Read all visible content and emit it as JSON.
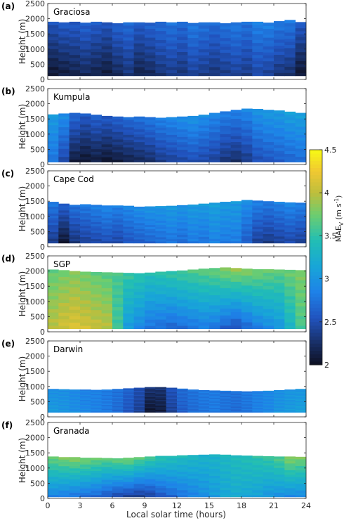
{
  "chart_data": {
    "type": "heatmap",
    "xlabel": "Local solar time (hours)",
    "ylabel": "Height (m)",
    "x_ticks": [
      0,
      3,
      6,
      9,
      12,
      15,
      18,
      21,
      24
    ],
    "y_ticks": [
      0,
      500,
      1000,
      1500,
      2000,
      2500
    ],
    "xlim": [
      0,
      24
    ],
    "ylim": [
      0,
      2500
    ],
    "colorbar": {
      "label": "MAE",
      "label_subscript": "V",
      "label_units": " (m s",
      "label_units_exp": "-1",
      "label_units_close": ")",
      "ticks": [
        "2",
        "2.5",
        "3",
        "3.5",
        "4",
        "4.5"
      ],
      "range": [
        2,
        4.5
      ],
      "colormap": "parula"
    },
    "panels": [
      {
        "letter": "(a)",
        "site": "Graciosa",
        "bottom": 120,
        "top": [
          1900,
          1880,
          1900,
          1870,
          1900,
          1880,
          1850,
          1880,
          1880,
          1870,
          1900,
          1880,
          1900,
          1860,
          1880,
          1880,
          1850,
          1880,
          1900,
          1900,
          1870,
          1920,
          1960,
          1890,
          1900
        ],
        "mae_low": [
          2.05,
          2.1,
          2.15,
          2.2,
          2.15,
          2.1,
          2.2,
          2.3,
          2.15,
          2.2,
          2.3,
          2.35,
          2.3,
          2.4,
          2.35,
          2.3,
          2.35,
          2.4,
          2.35,
          2.45,
          2.4,
          2.3,
          2.25,
          2.05
        ],
        "mae_high": [
          2.55,
          2.6,
          2.6,
          2.65,
          2.6,
          2.55,
          2.65,
          2.7,
          2.6,
          2.65,
          2.7,
          2.75,
          2.7,
          2.8,
          2.75,
          2.7,
          2.75,
          2.8,
          2.75,
          2.85,
          2.85,
          2.8,
          2.8,
          2.6
        ]
      },
      {
        "letter": "(b)",
        "site": "Kumpula",
        "bottom": 80,
        "top": [
          1650,
          1680,
          1700,
          1680,
          1640,
          1600,
          1580,
          1560,
          1580,
          1560,
          1540,
          1560,
          1580,
          1600,
          1640,
          1700,
          1750,
          1800,
          1840,
          1830,
          1800,
          1780,
          1740,
          1700,
          1680
        ],
        "mae_low": [
          2.75,
          2.45,
          2.1,
          2.05,
          2.1,
          2.05,
          2.1,
          2.15,
          2.2,
          2.25,
          2.35,
          2.4,
          2.45,
          2.5,
          2.45,
          2.4,
          2.3,
          2.25,
          2.35,
          2.5,
          2.55,
          2.6,
          2.65,
          2.7
        ],
        "mae_high": [
          3.05,
          2.95,
          2.7,
          2.6,
          2.65,
          2.6,
          2.65,
          2.7,
          2.75,
          2.8,
          2.85,
          2.9,
          2.95,
          3.0,
          2.95,
          2.9,
          2.85,
          2.85,
          2.9,
          3.0,
          3.05,
          3.05,
          3.1,
          3.1
        ]
      },
      {
        "letter": "(c)",
        "site": "Cape Cod",
        "bottom": 120,
        "top": [
          1480,
          1420,
          1380,
          1400,
          1380,
          1360,
          1360,
          1350,
          1320,
          1330,
          1340,
          1350,
          1370,
          1390,
          1420,
          1450,
          1480,
          1500,
          1540,
          1520,
          1500,
          1480,
          1460,
          1450,
          1440
        ],
        "mae_low": [
          2.35,
          2.05,
          2.3,
          2.4,
          2.45,
          2.5,
          2.45,
          2.55,
          2.6,
          2.65,
          2.7,
          2.75,
          2.7,
          2.8,
          2.75,
          2.85,
          2.8,
          2.8,
          2.6,
          2.4,
          2.35,
          2.4,
          2.45,
          2.4
        ],
        "mae_high": [
          2.8,
          2.65,
          2.75,
          2.8,
          2.85,
          2.9,
          2.85,
          2.9,
          2.95,
          3.0,
          3.0,
          3.05,
          3.0,
          3.05,
          3.05,
          3.1,
          3.05,
          3.05,
          2.95,
          2.85,
          2.8,
          2.85,
          2.9,
          2.85
        ]
      },
      {
        "letter": "(d)",
        "site": "SGP",
        "bottom": 100,
        "top": [
          2050,
          2030,
          2000,
          1980,
          1970,
          1960,
          1950,
          1940,
          1930,
          1950,
          1980,
          2000,
          2020,
          2050,
          2080,
          2100,
          2120,
          2100,
          2080,
          2060,
          2060,
          2050,
          2040,
          2030,
          2020
        ],
        "mae_low": [
          4.0,
          4.1,
          4.15,
          4.1,
          4.05,
          4.0,
          3.55,
          3.05,
          2.9,
          2.75,
          2.7,
          2.65,
          2.7,
          2.75,
          2.8,
          2.75,
          2.6,
          2.5,
          2.65,
          2.8,
          2.9,
          3.0,
          3.3,
          3.6
        ],
        "mae_high": [
          3.7,
          3.75,
          3.8,
          3.75,
          3.7,
          3.65,
          3.6,
          3.55,
          3.5,
          3.45,
          3.5,
          3.55,
          3.6,
          3.65,
          3.7,
          3.75,
          3.85,
          3.9,
          3.85,
          3.8,
          3.75,
          3.7,
          3.75,
          3.8
        ]
      },
      {
        "letter": "(e)",
        "site": "Darwin",
        "bottom": 150,
        "top": [
          920,
          910,
          900,
          900,
          890,
          900,
          920,
          940,
          960,
          980,
          980,
          960,
          930,
          900,
          880,
          870,
          860,
          850,
          840,
          850,
          860,
          880,
          900,
          920,
          940
        ],
        "mae_low": [
          3.05,
          3.0,
          2.95,
          2.9,
          2.85,
          2.8,
          2.7,
          2.55,
          2.4,
          2.05,
          2.1,
          2.4,
          2.6,
          2.7,
          2.75,
          2.8,
          2.75,
          2.7,
          2.75,
          2.85,
          2.9,
          3.0,
          3.05,
          3.1
        ],
        "mae_high": [
          2.95,
          2.95,
          2.9,
          2.85,
          2.85,
          2.8,
          2.75,
          2.65,
          2.5,
          2.3,
          2.3,
          2.55,
          2.7,
          2.75,
          2.8,
          2.8,
          2.75,
          2.75,
          2.8,
          2.85,
          2.9,
          2.95,
          3.0,
          3.0
        ]
      },
      {
        "letter": "(f)",
        "site": "Granada",
        "bottom": 50,
        "top": [
          1380,
          1360,
          1360,
          1340,
          1340,
          1330,
          1320,
          1340,
          1360,
          1380,
          1400,
          1400,
          1420,
          1430,
          1440,
          1450,
          1440,
          1420,
          1410,
          1400,
          1390,
          1380,
          1380,
          1370,
          1360
        ],
        "mae_low": [
          2.85,
          2.8,
          2.75,
          2.7,
          2.65,
          2.55,
          2.45,
          2.4,
          2.35,
          2.4,
          2.55,
          2.65,
          2.75,
          2.85,
          2.95,
          3.05,
          3.15,
          3.2,
          3.15,
          3.1,
          3.0,
          2.95,
          2.9,
          2.9
        ],
        "mae_high": [
          3.75,
          3.8,
          3.85,
          3.8,
          3.75,
          3.7,
          3.75,
          3.8,
          3.7,
          3.6,
          3.5,
          3.45,
          3.4,
          3.35,
          3.3,
          3.3,
          3.35,
          3.4,
          3.45,
          3.5,
          3.55,
          3.65,
          3.85,
          3.8
        ]
      }
    ]
  }
}
